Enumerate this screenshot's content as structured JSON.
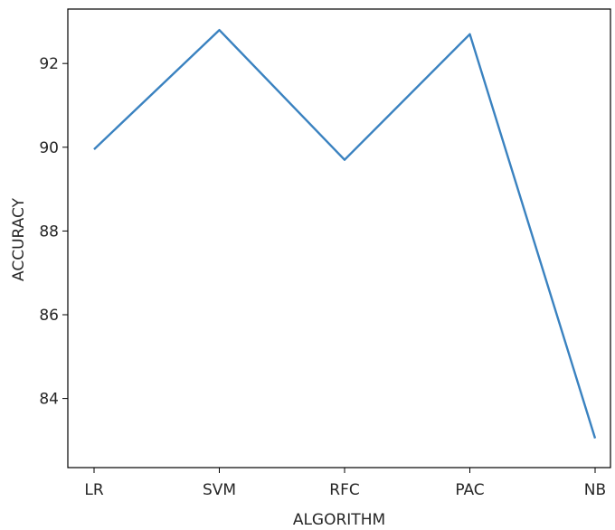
{
  "chart_data": {
    "type": "line",
    "categories": [
      "LR",
      "SVM",
      "RFC",
      "PAC",
      "NB"
    ],
    "values": [
      89.95,
      92.8,
      89.7,
      92.7,
      83.05
    ],
    "xlabel": "ALGORITHM",
    "ylabel": "ACCURACY",
    "yticks": [
      84,
      86,
      88,
      90,
      92
    ],
    "ylim": [
      82.35,
      93.3
    ],
    "grid": false,
    "line_color": "#3a82c0"
  }
}
